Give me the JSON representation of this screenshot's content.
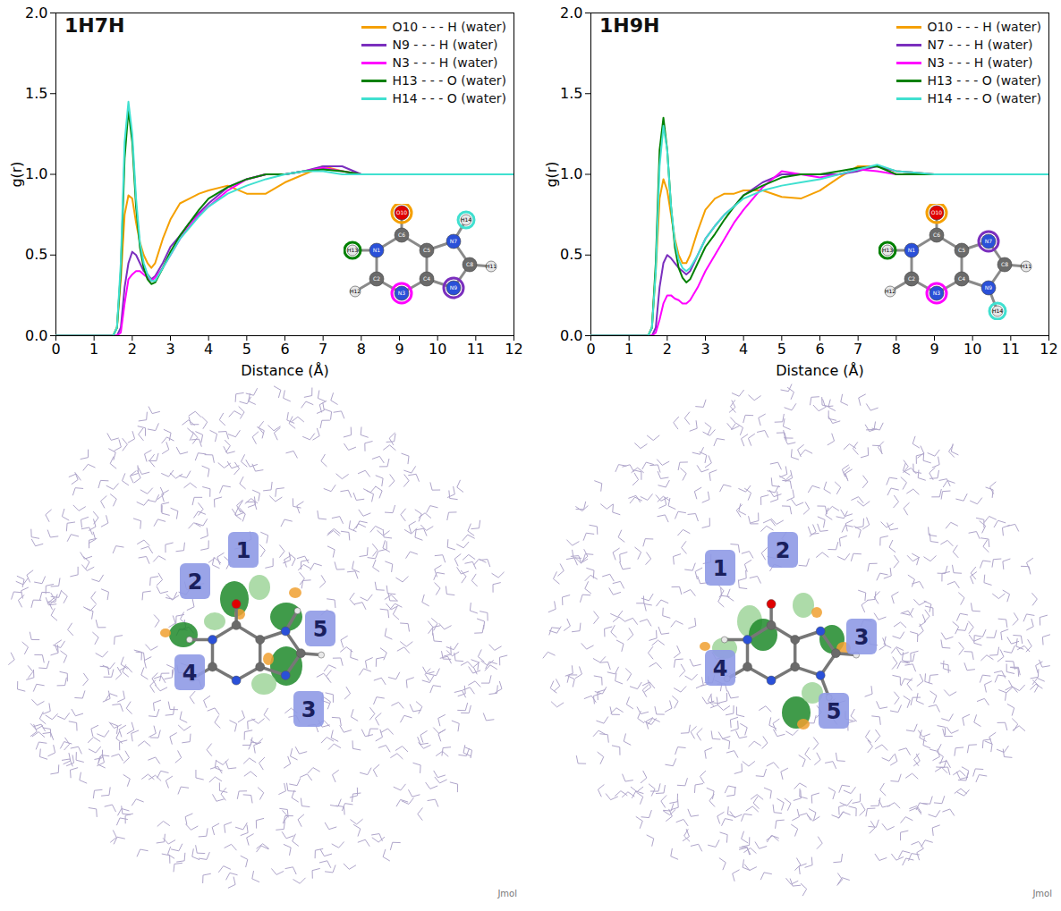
{
  "chart_data": [
    {
      "type": "line",
      "title": "1H7H",
      "x_label": "Distance (Å)",
      "y_label": "g(r)",
      "x": [
        0,
        1.5,
        1.6,
        1.7,
        1.8,
        1.9,
        2.0,
        2.1,
        2.2,
        2.3,
        2.4,
        2.5,
        2.6,
        2.8,
        3.0,
        3.25,
        3.5,
        3.75,
        4.0,
        4.5,
        5.0,
        5.5,
        6.0,
        6.5,
        7.0,
        7.5,
        8.0,
        9.0,
        10.0,
        11.0,
        12.0
      ],
      "series": [
        {
          "name": "O10 - - - H (water)",
          "color": "#f5a000",
          "values": [
            0,
            0,
            0.05,
            0.35,
            0.75,
            0.87,
            0.85,
            0.7,
            0.58,
            0.5,
            0.45,
            0.42,
            0.45,
            0.6,
            0.72,
            0.82,
            0.85,
            0.88,
            0.9,
            0.93,
            0.88,
            0.88,
            0.95,
            1.0,
            1.05,
            1.02,
            1.0,
            1.0,
            1.0,
            1.0,
            1.0
          ]
        },
        {
          "name": "N9 - - - H (water)",
          "color": "#7b2fbe",
          "values": [
            0,
            0,
            0,
            0.05,
            0.3,
            0.45,
            0.52,
            0.5,
            0.45,
            0.4,
            0.38,
            0.35,
            0.37,
            0.45,
            0.55,
            0.62,
            0.7,
            0.76,
            0.82,
            0.92,
            0.97,
            1.0,
            1.0,
            1.02,
            1.05,
            1.05,
            1.0,
            1.0,
            1.0,
            1.0,
            1.0
          ]
        },
        {
          "name": "N3 - - - H (water)",
          "color": "#ff00ff",
          "values": [
            0,
            0,
            0,
            0.02,
            0.2,
            0.35,
            0.38,
            0.4,
            0.4,
            0.38,
            0.36,
            0.34,
            0.36,
            0.42,
            0.5,
            0.6,
            0.68,
            0.75,
            0.8,
            0.9,
            0.97,
            1.0,
            1.0,
            1.02,
            1.04,
            1.02,
            1.0,
            1.0,
            1.0,
            1.0,
            1.0
          ]
        },
        {
          "name": "H13 - - - O (water)",
          "color": "#008000",
          "values": [
            0,
            0,
            0.05,
            0.4,
            1.1,
            1.4,
            1.2,
            0.8,
            0.55,
            0.42,
            0.35,
            0.32,
            0.33,
            0.42,
            0.52,
            0.62,
            0.7,
            0.78,
            0.85,
            0.92,
            0.97,
            1.0,
            1.0,
            1.02,
            1.03,
            1.02,
            1.0,
            1.0,
            1.0,
            1.0,
            1.0
          ]
        },
        {
          "name": "H14 - - - O (water)",
          "color": "#40e0d0",
          "values": [
            0,
            0,
            0.05,
            0.45,
            1.2,
            1.45,
            1.25,
            0.85,
            0.58,
            0.45,
            0.38,
            0.34,
            0.34,
            0.42,
            0.5,
            0.6,
            0.67,
            0.74,
            0.8,
            0.88,
            0.93,
            0.97,
            1.0,
            1.02,
            1.02,
            1.0,
            1.0,
            1.0,
            1.0,
            1.0,
            1.0
          ]
        }
      ],
      "xlim": [
        0,
        12
      ],
      "xticks": [
        0,
        1,
        2,
        3,
        4,
        5,
        6,
        7,
        8,
        9,
        10,
        11,
        12
      ],
      "ylim": [
        0,
        2
      ],
      "yticks": [
        {
          "value": 0,
          "label": "0.0"
        },
        0.5,
        {
          "value": 1,
          "label": "1.0"
        },
        1.5,
        {
          "value": 2,
          "label": "2.0"
        }
      ],
      "grid": false,
      "legend": "top-right",
      "inset_atoms": [
        "O10",
        "C6",
        "N1",
        "H13",
        "C2",
        "H12",
        "N3",
        "C4",
        "C5",
        "N7",
        "H14",
        "C8",
        "H11",
        "N9"
      ]
    },
    {
      "type": "line",
      "title": "1H9H",
      "x_label": "Distance (Å)",
      "y_label": "g(r)",
      "x": [
        0,
        1.5,
        1.6,
        1.7,
        1.8,
        1.9,
        2.0,
        2.1,
        2.2,
        2.3,
        2.4,
        2.5,
        2.6,
        2.8,
        3.0,
        3.25,
        3.5,
        3.75,
        4.0,
        4.5,
        5.0,
        5.5,
        6.0,
        6.5,
        7.0,
        7.5,
        8.0,
        9.0,
        10.0,
        11.0,
        12.0
      ],
      "series": [
        {
          "name": "O10 - - - H (water)",
          "color": "#f5a000",
          "values": [
            0,
            0,
            0.05,
            0.4,
            0.85,
            0.97,
            0.9,
            0.75,
            0.6,
            0.5,
            0.45,
            0.45,
            0.5,
            0.65,
            0.78,
            0.85,
            0.88,
            0.88,
            0.9,
            0.9,
            0.86,
            0.85,
            0.9,
            0.98,
            1.05,
            1.05,
            1.02,
            1.0,
            1.0,
            1.0,
            1.0
          ]
        },
        {
          "name": "N7 - - - H (water)",
          "color": "#7b2fbe",
          "values": [
            0,
            0,
            0,
            0.05,
            0.3,
            0.45,
            0.5,
            0.48,
            0.45,
            0.42,
            0.4,
            0.38,
            0.4,
            0.5,
            0.6,
            0.68,
            0.75,
            0.8,
            0.87,
            0.95,
            1.0,
            1.0,
            1.0,
            1.0,
            1.02,
            1.05,
            1.02,
            1.0,
            1.0,
            1.0,
            1.0
          ]
        },
        {
          "name": "N3 - - - H (water)",
          "color": "#ff00ff",
          "values": [
            0,
            0,
            0,
            0.02,
            0.1,
            0.2,
            0.25,
            0.25,
            0.23,
            0.22,
            0.2,
            0.2,
            0.22,
            0.3,
            0.4,
            0.5,
            0.6,
            0.7,
            0.78,
            0.92,
            1.02,
            1.0,
            0.98,
            1.0,
            1.03,
            1.02,
            1.0,
            1.0,
            1.0,
            1.0,
            1.0
          ]
        },
        {
          "name": "H13 - - - O (water)",
          "color": "#008000",
          "values": [
            0,
            0,
            0.05,
            0.45,
            1.15,
            1.35,
            1.15,
            0.8,
            0.55,
            0.42,
            0.36,
            0.33,
            0.35,
            0.45,
            0.55,
            0.63,
            0.72,
            0.8,
            0.87,
            0.93,
            0.98,
            1.0,
            1.0,
            1.02,
            1.04,
            1.05,
            1.0,
            1.0,
            1.0,
            1.0,
            1.0
          ]
        },
        {
          "name": "H14 - - - O (water)",
          "color": "#40e0d0",
          "values": [
            0,
            0,
            0.05,
            0.4,
            1.05,
            1.3,
            1.15,
            0.8,
            0.58,
            0.47,
            0.42,
            0.4,
            0.42,
            0.5,
            0.6,
            0.68,
            0.75,
            0.8,
            0.85,
            0.9,
            0.93,
            0.95,
            0.97,
            1.0,
            1.03,
            1.06,
            1.02,
            1.0,
            1.0,
            1.0,
            1.0
          ]
        }
      ],
      "xlim": [
        0,
        12
      ],
      "xticks": [
        0,
        1,
        2,
        3,
        4,
        5,
        6,
        7,
        8,
        9,
        10,
        11,
        12
      ],
      "ylim": [
        0,
        2
      ],
      "yticks": [
        {
          "value": 0,
          "label": "0.0"
        },
        0.5,
        {
          "value": 1,
          "label": "1.0"
        },
        1.5,
        {
          "value": 2,
          "label": "2.0"
        }
      ],
      "grid": false,
      "legend": "top-right",
      "inset_atoms": [
        "O10",
        "C6",
        "N1",
        "H13",
        "C2",
        "H12",
        "N3",
        "C4",
        "C5",
        "N7",
        "C8",
        "H11",
        "N9",
        "H14"
      ]
    }
  ],
  "images": [
    {
      "labels": [
        "1",
        "2",
        "3",
        "4",
        "5"
      ],
      "credit": "Jmol"
    },
    {
      "labels": [
        "1",
        "2",
        "3",
        "4",
        "5"
      ],
      "credit": "Jmol"
    }
  ]
}
